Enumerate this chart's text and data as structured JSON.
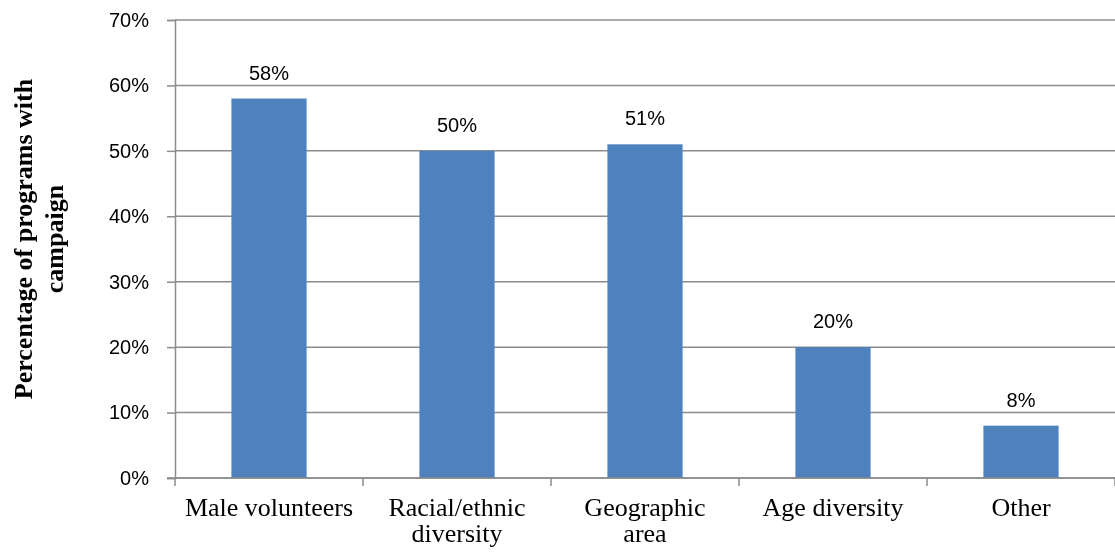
{
  "chart_data": {
    "type": "bar",
    "ylabel": "Percentage of programs with campaign",
    "categories": [
      "Male volunteers",
      "Racial/ethnic diversity",
      "Geographic area",
      "Age diversity",
      "Other"
    ],
    "values": [
      58,
      50,
      51,
      20,
      8
    ],
    "value_labels": [
      "58%",
      "50%",
      "51%",
      "20%",
      "8%"
    ],
    "color": "#4f81bd",
    "ylim": [
      0,
      70
    ],
    "yticks": [
      {
        "value": 0,
        "label": "0%"
      },
      {
        "value": 10,
        "label": "10%"
      },
      {
        "value": 20,
        "label": "20%"
      },
      {
        "value": 30,
        "label": "30%"
      },
      {
        "value": 40,
        "label": "40%"
      },
      {
        "value": 50,
        "label": "50%"
      },
      {
        "value": 60,
        "label": "60%"
      },
      {
        "value": 70,
        "label": "70%"
      }
    ],
    "grid": "y"
  }
}
